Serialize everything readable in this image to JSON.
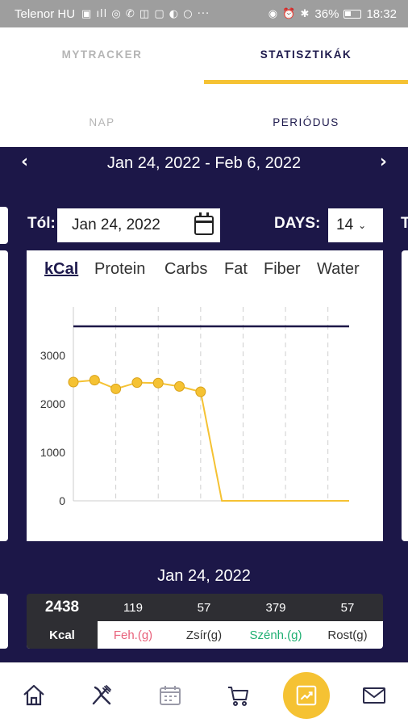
{
  "status_bar": {
    "carrier": "Telenor HU",
    "battery": "36%",
    "time": "18:32"
  },
  "tabs": [
    {
      "label": "MYTRACKER",
      "active": false
    },
    {
      "label": "STATISZTIKÁK",
      "active": true
    }
  ],
  "subtabs": [
    {
      "label": "NAP",
      "active": false
    },
    {
      "label": "PERIÓDUS",
      "active": true
    }
  ],
  "period": {
    "range": "Jan 24, 2022 - Feb 6, 2022",
    "from_label": "Tól:",
    "from_date": "Jan 24, 2022",
    "days_label": "DAYS:",
    "days_value": "14",
    "next_card_peek": "T"
  },
  "metric_tabs": [
    {
      "label": "kCal",
      "active": true
    },
    {
      "label": "Protein",
      "active": false
    },
    {
      "label": "Carbs",
      "active": false
    },
    {
      "label": "Fat",
      "active": false
    },
    {
      "label": "Fiber",
      "active": false
    },
    {
      "label": "Water",
      "active": false
    }
  ],
  "chart_data": {
    "type": "line",
    "x": [
      1,
      2,
      3,
      4,
      5,
      6,
      7,
      8,
      9,
      10,
      11,
      12,
      13,
      14
    ],
    "series": [
      {
        "values": [
          2450,
          2490,
          2310,
          2440,
          2430,
          2360,
          2250,
          0,
          0,
          0,
          0,
          0,
          0,
          0
        ],
        "color": "#f5c233",
        "markers_first": 7
      },
      {
        "values": [
          3600,
          3600,
          3600,
          3600,
          3600,
          3600,
          3600,
          3600,
          3600,
          3600,
          3600,
          3600,
          3600,
          3600
        ],
        "color": "#1c1748"
      }
    ],
    "y_ticks": [
      "0",
      "1000",
      "2000",
      "3000"
    ],
    "ylim": [
      0,
      4000
    ],
    "grid": "vertical dashed"
  },
  "selected_day": {
    "date": "Jan 24, 2022",
    "kcal_value": "2438",
    "kcal_label": "Kcal",
    "nutrients": [
      {
        "value": "119",
        "label": "Feh.(g)",
        "color": "#e8607a"
      },
      {
        "value": "57",
        "label": "Zsír(g)",
        "color": "#333333"
      },
      {
        "value": "379",
        "label": "Szénh.(g)",
        "color": "#1faf72"
      },
      {
        "value": "57",
        "label": "Rost(g)",
        "color": "#333333"
      }
    ]
  },
  "bottom_nav": [
    {
      "icon": "home-icon"
    },
    {
      "icon": "fork-knife-icon"
    },
    {
      "icon": "calendar-icon"
    },
    {
      "icon": "cart-icon"
    },
    {
      "icon": "chart-icon",
      "active": true
    },
    {
      "icon": "mail-icon"
    }
  ]
}
